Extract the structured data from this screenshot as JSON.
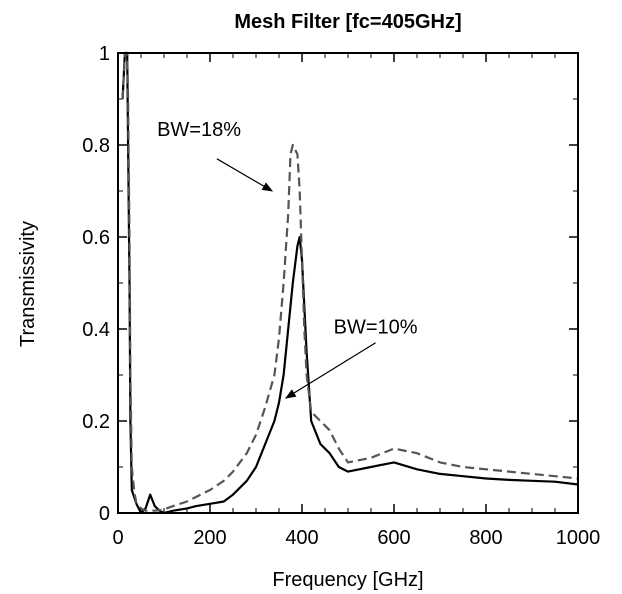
{
  "chart_data": {
    "type": "line",
    "title": "Mesh Filter  [fc=405GHz]",
    "xlabel": "Frequency [GHz]",
    "ylabel": "Transmissivity",
    "xlim": [
      0,
      1000
    ],
    "ylim": [
      0,
      1
    ],
    "xticks": [
      0,
      200,
      400,
      600,
      800,
      1000
    ],
    "yticks": [
      0,
      0.2,
      0.4,
      0.6,
      0.8,
      1
    ],
    "xtick_labels": [
      "0",
      "200",
      "400",
      "600",
      "800",
      "1000"
    ],
    "ytick_labels": [
      "0",
      "0.2",
      "0.4",
      "0.6",
      "0.8",
      "1"
    ],
    "grid": false,
    "series": [
      {
        "style": "solid",
        "color": "#000000",
        "x": [
          10,
          15,
          20,
          22,
          25,
          27,
          30,
          40,
          50,
          60,
          70,
          80,
          90,
          100,
          120,
          150,
          170,
          200,
          230,
          250,
          280,
          300,
          320,
          340,
          350,
          360,
          370,
          380,
          390,
          395,
          400,
          405,
          410,
          420,
          440,
          460,
          480,
          500,
          550,
          600,
          650,
          700,
          750,
          800,
          850,
          900,
          950,
          1000
        ],
        "y": [
          0.9,
          1.0,
          1.0,
          0.8,
          0.5,
          0.2,
          0.05,
          0.02,
          0.0,
          0.01,
          0.04,
          0.015,
          0.005,
          0.0,
          0.005,
          0.01,
          0.015,
          0.02,
          0.025,
          0.04,
          0.07,
          0.1,
          0.15,
          0.2,
          0.24,
          0.3,
          0.4,
          0.5,
          0.58,
          0.6,
          0.55,
          0.45,
          0.35,
          0.2,
          0.15,
          0.13,
          0.1,
          0.09,
          0.1,
          0.11,
          0.095,
          0.085,
          0.08,
          0.075,
          0.072,
          0.07,
          0.068,
          0.062
        ]
      },
      {
        "style": "dashed",
        "color": "#555555",
        "x": [
          10,
          15,
          20,
          22,
          25,
          27,
          30,
          35,
          40,
          50,
          60,
          70,
          80,
          90,
          100,
          120,
          150,
          170,
          200,
          230,
          250,
          280,
          300,
          320,
          340,
          350,
          360,
          370,
          375,
          380,
          385,
          390,
          395,
          400,
          405,
          410,
          420,
          440,
          460,
          480,
          500,
          550,
          600,
          650,
          700,
          750,
          800,
          850,
          900,
          950,
          1000
        ],
        "y": [
          0.9,
          1.0,
          1.0,
          0.9,
          0.6,
          0.3,
          0.1,
          0.05,
          0.02,
          0.01,
          0.005,
          0.005,
          0.005,
          0.006,
          0.008,
          0.015,
          0.025,
          0.035,
          0.05,
          0.07,
          0.09,
          0.13,
          0.17,
          0.23,
          0.3,
          0.38,
          0.5,
          0.65,
          0.78,
          0.8,
          0.79,
          0.78,
          0.7,
          0.55,
          0.4,
          0.3,
          0.22,
          0.2,
          0.18,
          0.14,
          0.11,
          0.12,
          0.14,
          0.13,
          0.11,
          0.1,
          0.095,
          0.09,
          0.085,
          0.08,
          0.075
        ]
      }
    ],
    "annotations": [
      {
        "text": "BW=18%",
        "text_x": 85,
        "text_y": 0.82,
        "arrow_from_x": 215,
        "arrow_from_y": 0.77,
        "arrow_to_x": 335,
        "arrow_to_y": 0.7
      },
      {
        "text": "BW=10%",
        "text_x": 560,
        "text_y": 0.39,
        "arrow_from_x": 560,
        "arrow_from_y": 0.37,
        "arrow_to_x": 365,
        "arrow_to_y": 0.25
      }
    ]
  }
}
